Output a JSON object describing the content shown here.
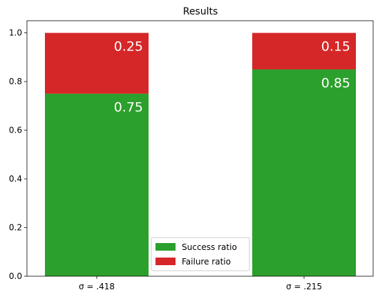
{
  "chart_data": {
    "type": "bar",
    "stacked": true,
    "title": "Results",
    "xlabel": "",
    "ylabel": "",
    "categories": [
      "σ = .418",
      "σ = .215"
    ],
    "series": [
      {
        "name": "Success ratio",
        "values": [
          0.75,
          0.85
        ],
        "color": "#2ca02c",
        "labels": [
          "0.75",
          "0.85"
        ]
      },
      {
        "name": "Failure ratio",
        "values": [
          0.25,
          0.15
        ],
        "color": "#d62728",
        "labels": [
          "0.25",
          "0.15"
        ]
      }
    ],
    "ylim": [
      0,
      1.05
    ],
    "yticks": [
      "0.0",
      "0.2",
      "0.4",
      "0.6",
      "0.8",
      "1.0"
    ],
    "ytick_values": [
      0,
      0.2,
      0.4,
      0.6,
      0.8,
      1.0
    ],
    "grid": false,
    "legend_position": "lower center"
  }
}
